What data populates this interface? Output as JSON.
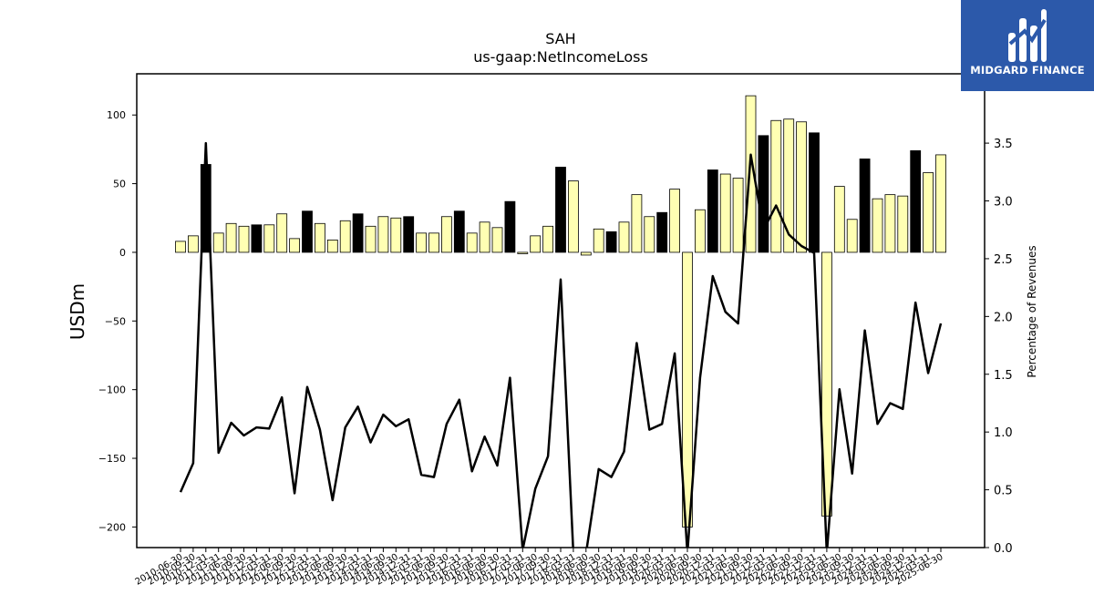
{
  "brand": {
    "name": "MIDGARD FINANCE",
    "bg_color": "#2c59aa"
  },
  "chart_data": {
    "type": "bar",
    "title": "SAH",
    "subtitle": "us-gaap:NetIncomeLoss",
    "ylabel": "USDm",
    "y2label": "Percentage of Revenues",
    "ylim": [
      -215,
      130
    ],
    "y2lim": [
      0,
      4.1
    ],
    "yticks": [
      100,
      50,
      0,
      -50,
      -100,
      -150,
      -200
    ],
    "y2ticks": [
      0.0,
      0.5,
      1.0,
      1.5,
      2.0,
      2.5,
      3.0,
      3.5
    ],
    "x_tick_labels": [
      "2010-06-30",
      "2010-09-30",
      "2010-12-31",
      "2011-03-31",
      "2011-06-30",
      "2011-09-30",
      "2011-12-31",
      "2012-03-31",
      "2012-06-30",
      "2012-09-30",
      "2012-12-31",
      "2013-03-31",
      "2013-06-30",
      "2013-09-30",
      "2013-12-31",
      "2014-03-31",
      "2014-06-30",
      "2014-09-30",
      "2014-12-31",
      "2015-03-31",
      "2015-06-30",
      "2015-09-30",
      "2015-12-31",
      "2016-03-31",
      "2016-06-30",
      "2016-09-30",
      "2016-12-31",
      "2017-03-31",
      "2017-06-30",
      "2017-09-30",
      "2017-12-31",
      "2018-03-31",
      "2018-06-30",
      "2018-09-30",
      "2018-12-31",
      "2019-03-31",
      "2019-06-30",
      "2019-09-30",
      "2019-12-31",
      "2020-03-31",
      "2020-06-30",
      "2020-09-30",
      "2020-12-31",
      "2021-03-31",
      "2021-06-30",
      "2021-09-30",
      "2021-12-31",
      "2022-03-31",
      "2022-06-30",
      "2022-09-30",
      "2022-12-31",
      "2023-03-31",
      "2023-06-30",
      "2023-09-30",
      "2023-12-31",
      "2024-03-31",
      "2024-06-30",
      "2024-09-30",
      "2024-12-31",
      "2025-03-31",
      "2025-06-30"
    ],
    "colors": {
      "normal": "#ffffb3",
      "year_end": "#000000",
      "line": "#000000"
    },
    "series": [
      {
        "values": [
          8,
          12,
          64,
          14,
          21,
          19,
          20,
          20,
          28,
          10,
          30,
          21,
          9,
          23,
          28,
          19,
          26,
          25,
          26,
          14,
          14,
          26,
          30,
          14,
          22,
          18,
          37,
          -1,
          12,
          19,
          62,
          52,
          -2,
          17,
          15,
          22,
          42,
          26,
          29,
          46,
          -200,
          31,
          60,
          57,
          54,
          114,
          85,
          96,
          97,
          95,
          87,
          -192,
          48,
          24,
          68,
          39,
          42,
          41,
          74,
          58,
          71
        ]
      },
      {
        "values": [
          0.48,
          0.73,
          3.5,
          0.82,
          1.08,
          0.97,
          1.04,
          1.03,
          1.3,
          0.47,
          1.39,
          1.02,
          0.41,
          1.04,
          1.22,
          0.91,
          1.15,
          1.05,
          1.11,
          0.63,
          0.61,
          1.07,
          1.28,
          0.66,
          0.96,
          0.71,
          1.47,
          -0.02,
          0.51,
          0.79,
          2.32,
          -0.05,
          -0.05,
          0.68,
          0.61,
          0.83,
          1.77,
          1.02,
          1.07,
          1.68,
          -0.05,
          1.47,
          2.35,
          2.04,
          1.94,
          3.4,
          2.75,
          2.96,
          2.71,
          2.61,
          2.55,
          -0.05,
          1.37,
          0.64,
          1.88,
          1.07,
          1.25,
          1.2,
          2.12,
          1.51,
          1.94
        ]
      }
    ]
  }
}
